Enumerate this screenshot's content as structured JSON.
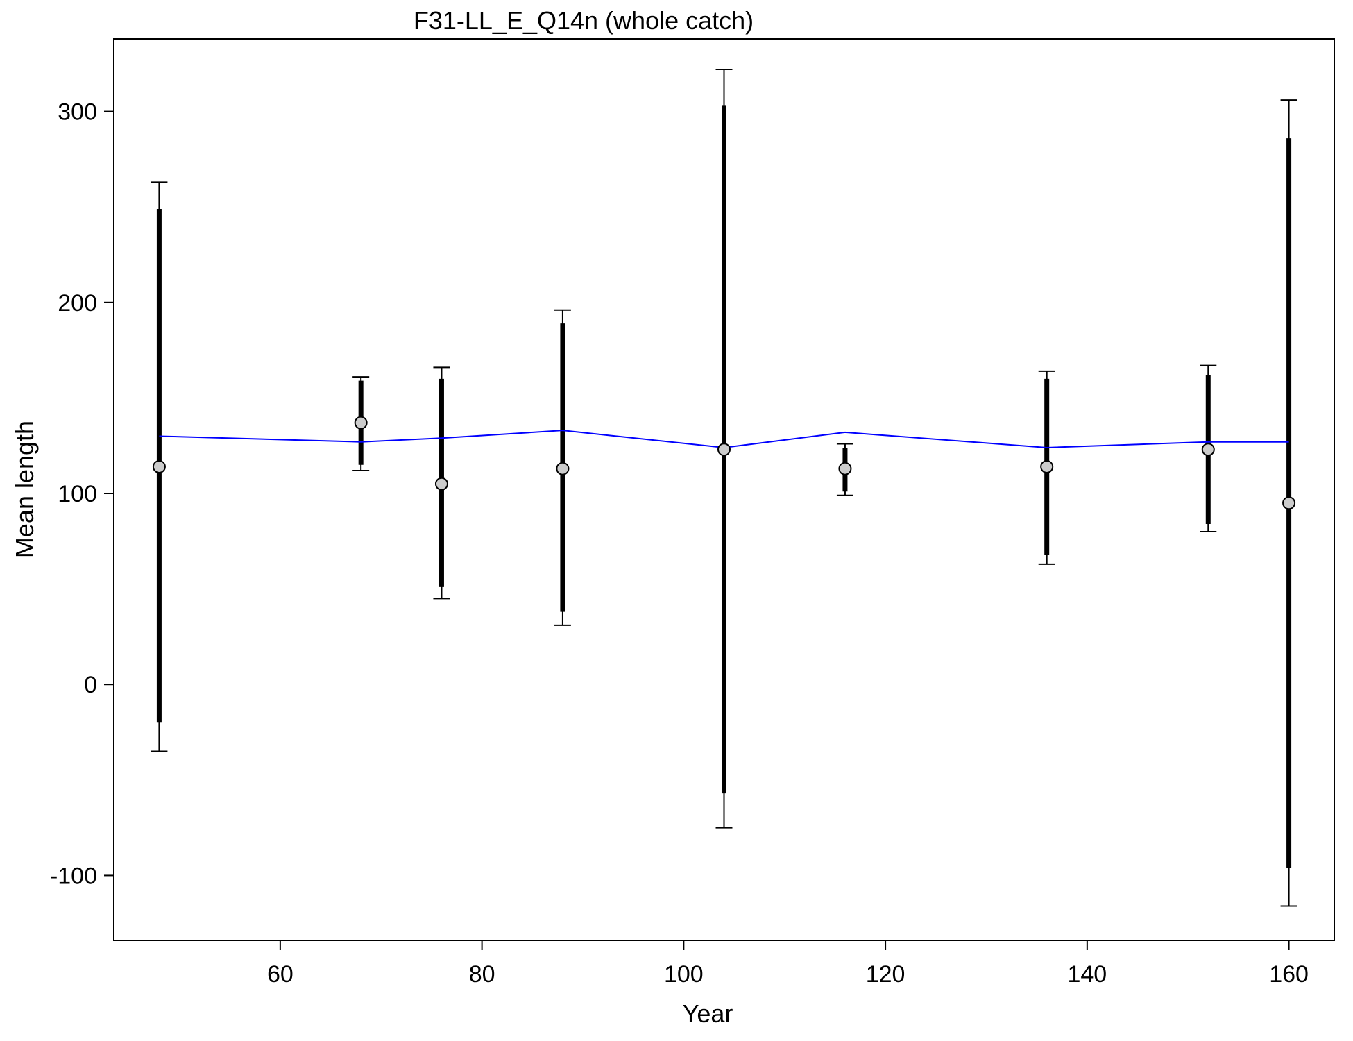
{
  "chart_data": {
    "type": "scatter",
    "title": "F31-LL_E_Q14n (whole catch)",
    "xlabel": "Year",
    "ylabel": "Mean length",
    "xlim": [
      43.5,
      164.5
    ],
    "ylim": [
      -134,
      338
    ],
    "x_ticks": [
      60,
      80,
      100,
      120,
      140,
      160
    ],
    "y_ticks": [
      -100,
      0,
      100,
      200,
      300
    ],
    "grid": false,
    "legend": "none",
    "colors": {
      "expected_line": "#0000ff",
      "observed_point_fill": "#cccccc",
      "interval": "#000000"
    },
    "series": [
      {
        "points": [
          {
            "x": 48,
            "y": 114,
            "inner": [
              -20,
              249
            ],
            "outer": [
              -35,
              263
            ]
          },
          {
            "x": 68,
            "y": 137,
            "inner": [
              115,
              159
            ],
            "outer": [
              112,
              161
            ]
          },
          {
            "x": 76,
            "y": 105,
            "inner": [
              51,
              160
            ],
            "outer": [
              45,
              166
            ]
          },
          {
            "x": 88,
            "y": 113,
            "inner": [
              38,
              189
            ],
            "outer": [
              31,
              196
            ]
          },
          {
            "x": 104,
            "y": 123,
            "inner": [
              -57,
              303
            ],
            "outer": [
              -75,
              322
            ]
          },
          {
            "x": 116,
            "y": 113,
            "inner": [
              101,
              124
            ],
            "outer": [
              99,
              126
            ]
          },
          {
            "x": 136,
            "y": 114,
            "inner": [
              68,
              160
            ],
            "outer": [
              63,
              164
            ]
          },
          {
            "x": 152,
            "y": 123,
            "inner": [
              84,
              162
            ],
            "outer": [
              80,
              167
            ]
          },
          {
            "x": 160,
            "y": 95,
            "inner": [
              -96,
              286
            ],
            "outer": [
              -116,
              306
            ]
          }
        ]
      },
      {
        "x": [
          48,
          68,
          76,
          88,
          104,
          116,
          136,
          152,
          160
        ],
        "y": [
          130,
          127,
          129,
          133,
          124,
          132,
          124,
          127,
          127
        ]
      }
    ]
  }
}
